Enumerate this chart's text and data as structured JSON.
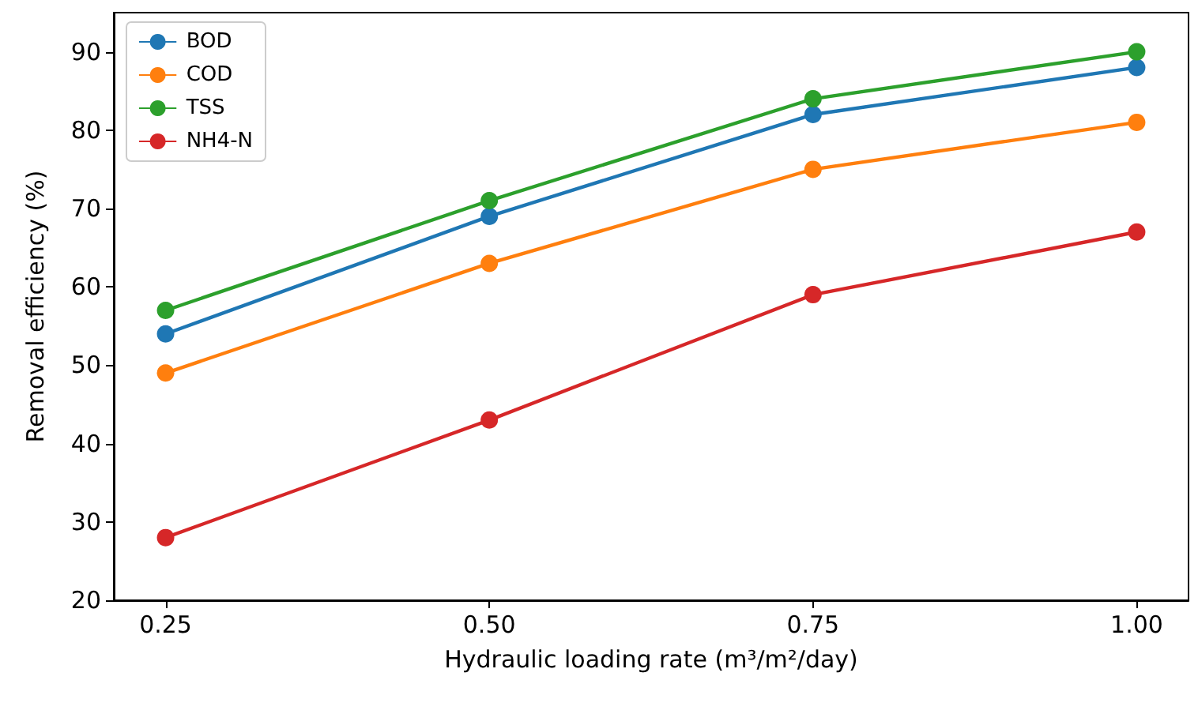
{
  "chart_data": {
    "type": "line",
    "xlabel": "Hydraulic loading rate (m³/m²/day)",
    "ylabel": "Removal efficiency (%)",
    "x": [
      0.25,
      0.5,
      0.75,
      1.0
    ],
    "series": [
      {
        "name": "BOD",
        "color": "#1f77b4",
        "values": [
          54,
          69,
          82,
          88
        ]
      },
      {
        "name": "COD",
        "color": "#ff7f0e",
        "values": [
          49,
          63,
          75,
          81
        ]
      },
      {
        "name": "TSS",
        "color": "#2ca02c",
        "values": [
          57,
          71,
          84,
          90
        ]
      },
      {
        "name": "NH4-N",
        "color": "#d62728",
        "values": [
          28,
          43,
          59,
          67
        ]
      }
    ],
    "xlim": [
      0.21,
      1.04
    ],
    "xticks": [
      {
        "value": 0.25,
        "label": "0.25"
      },
      {
        "value": 0.5,
        "label": "0.50"
      },
      {
        "value": 0.75,
        "label": "0.75"
      },
      {
        "value": 1.0,
        "label": "1.00"
      }
    ],
    "ylim": [
      20,
      95
    ],
    "yticks": [
      20,
      30,
      40,
      50,
      60,
      70,
      80,
      90
    ],
    "grid": false,
    "legend": "top left",
    "marker": "circle",
    "line_style": "solid"
  }
}
